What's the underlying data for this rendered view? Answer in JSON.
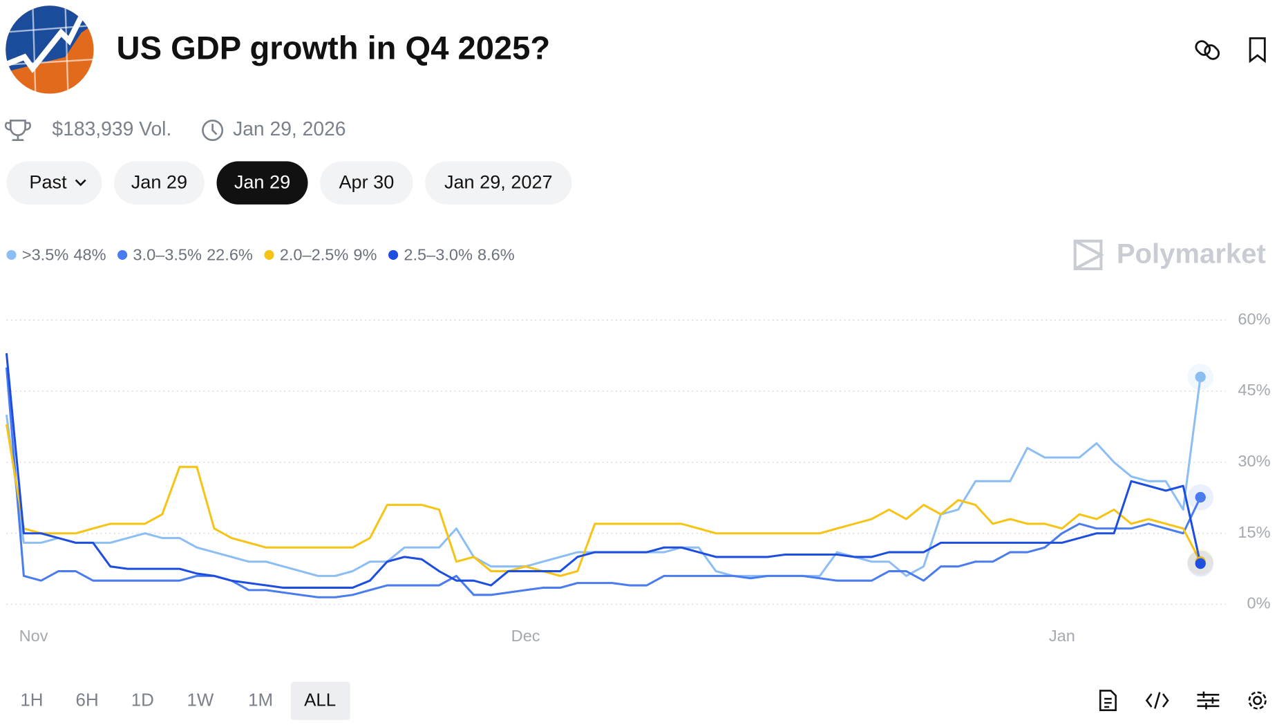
{
  "header": {
    "title": "US GDP growth in Q4 2025?"
  },
  "stats": {
    "volume": "$183,939 Vol.",
    "end_date": "Jan 29, 2026"
  },
  "date_tabs": [
    "Past",
    "Jan 29",
    "Jan 29",
    "Apr 30",
    "Jan 29, 2027"
  ],
  "active_tab": 2,
  "watermark": "Polymarket",
  "chart_data": {
    "type": "line",
    "categories": [
      null,
      "Nov",
      null,
      null,
      null,
      null,
      null,
      null,
      null,
      null,
      null,
      null,
      null,
      null,
      null,
      null,
      null,
      null,
      null,
      null,
      null,
      null,
      null,
      null,
      null,
      null,
      null,
      null,
      null,
      null,
      "Dec",
      null,
      null,
      null,
      null,
      null,
      null,
      null,
      null,
      null,
      null,
      null,
      null,
      null,
      null,
      null,
      null,
      null,
      null,
      null,
      null,
      null,
      null,
      null,
      null,
      null,
      null,
      null,
      null,
      null,
      null,
      "Jan",
      null,
      null,
      null,
      null,
      null,
      null,
      null,
      null
    ],
    "series": [
      {
        "name": ">3.5%",
        "color": "#8dbef3",
        "legend_value": {
          "value": 48,
          "label": "48%"
        },
        "values": [
          40,
          13,
          13,
          14,
          13,
          13,
          13,
          14,
          15,
          14,
          14,
          12,
          11,
          10,
          9,
          9,
          8,
          7,
          6,
          6,
          7,
          9,
          9,
          12,
          12,
          12,
          16,
          10,
          8,
          8,
          8,
          9,
          10,
          11,
          11,
          11,
          11,
          11,
          11,
          12,
          12,
          7,
          6,
          6,
          6,
          6,
          6,
          6,
          11,
          10,
          9,
          9,
          6,
          8,
          19,
          20,
          26,
          26,
          26,
          33,
          31,
          31,
          31,
          34,
          30,
          27,
          26,
          26,
          20,
          48
        ]
      },
      {
        "name": "3.0–3.5%",
        "color": "#4a7cf0",
        "legend_value": {
          "value": 22.6,
          "label": "22.6%"
        },
        "values": [
          50,
          6,
          5,
          7,
          7,
          5,
          5,
          5,
          5,
          5,
          5,
          6,
          6,
          5,
          3,
          3,
          2.5,
          2,
          1.5,
          1.5,
          2,
          3,
          4,
          4,
          4,
          4,
          6,
          2,
          2,
          2.5,
          3,
          3.5,
          3.5,
          4.5,
          4.5,
          4.5,
          4,
          4,
          6,
          6,
          6,
          6,
          6,
          5.5,
          6,
          6,
          6,
          5.5,
          5,
          5,
          5,
          7,
          7,
          5,
          8,
          8,
          9,
          9,
          11,
          11,
          12,
          15,
          17,
          16,
          16,
          16,
          17,
          16,
          15,
          22.6
        ]
      },
      {
        "name": "2.0–2.5%",
        "color": "#f5c417",
        "legend_value": {
          "value": 9,
          "label": "9%"
        },
        "values": [
          38,
          16,
          15,
          15,
          15,
          16,
          17,
          17,
          17,
          19,
          29,
          29,
          16,
          14,
          13,
          12,
          12,
          12,
          12,
          12,
          12,
          14,
          21,
          21,
          21,
          20,
          9,
          10,
          7,
          7,
          8,
          7,
          6,
          7,
          17,
          17,
          17,
          17,
          17,
          17,
          16,
          15,
          15,
          15,
          15,
          15,
          15,
          15,
          16,
          17,
          18,
          20,
          18,
          21,
          19,
          22,
          21,
          17,
          18,
          17,
          17,
          16,
          19,
          18,
          20,
          17,
          18,
          17,
          16,
          9
        ]
      },
      {
        "name": "2.5–3.0%",
        "color": "#1d4ee0",
        "legend_value": {
          "value": 8.6,
          "label": "8.6%"
        },
        "values": [
          53,
          15,
          15,
          14,
          13,
          13,
          8,
          7.5,
          7.5,
          7.5,
          7.5,
          6.5,
          6,
          5,
          4.5,
          4,
          3.5,
          3.5,
          3.5,
          3.5,
          3.5,
          5,
          9,
          10,
          9.5,
          7,
          5,
          5,
          4,
          7,
          7,
          7,
          7,
          10,
          11,
          11,
          11,
          11,
          12,
          12,
          11,
          10,
          10,
          10,
          10,
          10.5,
          10.5,
          10.5,
          10.5,
          10,
          10,
          11,
          11,
          11,
          13,
          13,
          13,
          13,
          13,
          13,
          13,
          13,
          14,
          15,
          15,
          26,
          25,
          24,
          25,
          8.6
        ]
      }
    ],
    "ylim": [
      0,
      60
    ],
    "yticks": [
      {
        "value": 0,
        "label": "0%"
      },
      {
        "value": 15,
        "label": "15%"
      },
      {
        "value": 30,
        "label": "30%"
      },
      {
        "value": 45,
        "label": "45%"
      },
      {
        "value": 60,
        "label": "60%"
      }
    ],
    "grid": true
  },
  "time_ranges": [
    "1H",
    "6H",
    "1D",
    "1W",
    "1M",
    "ALL"
  ],
  "active_range": 5
}
